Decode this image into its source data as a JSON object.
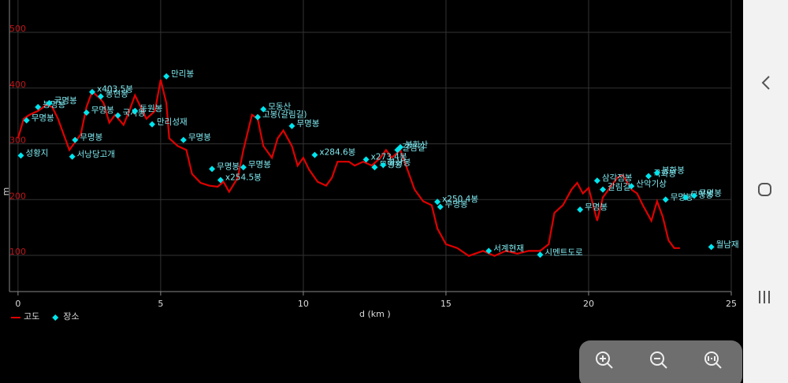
{
  "chart_data": {
    "type": "line",
    "x_label": "d (km )",
    "y_label": "m",
    "xlim": [
      -0.3,
      25
    ],
    "ylim": [
      35,
      558
    ],
    "xticks": [
      0,
      5,
      10,
      15,
      20,
      25
    ],
    "yticks": [
      100,
      200,
      300,
      400,
      500
    ],
    "grid": true,
    "series": [
      {
        "name": "고도",
        "color": "#e00000",
        "type": "line",
        "x": [
          0,
          0.2,
          0.4,
          0.7,
          1.0,
          1.2,
          1.4,
          1.6,
          1.8,
          2.0,
          2.2,
          2.4,
          2.6,
          2.9,
          3.0,
          3.2,
          3.4,
          3.7,
          3.9,
          4.1,
          4.3,
          4.5,
          4.8,
          5.0,
          5.2,
          5.3,
          5.6,
          5.9,
          6.1,
          6.4,
          6.7,
          7.0,
          7.2,
          7.4,
          7.7,
          7.9,
          8.2,
          8.4,
          8.6,
          8.9,
          9.1,
          9.3,
          9.6,
          9.8,
          10.0,
          10.2,
          10.5,
          10.8,
          11.0,
          11.2,
          11.6,
          11.8,
          12.1,
          12.4,
          12.7,
          12.9,
          13.1,
          13.4,
          13.6,
          13.9,
          14.2,
          14.5,
          14.7,
          15.0,
          15.4,
          15.8,
          16.3,
          16.7,
          17.1,
          17.5,
          17.9,
          18.3,
          18.6,
          18.8,
          19.1,
          19.4,
          19.6,
          19.8,
          20.0,
          20.3,
          20.5,
          20.7,
          21.0,
          21.2,
          21.5,
          21.7,
          21.9,
          22.2,
          22.4,
          22.6,
          22.8,
          23.0,
          23.2
        ],
        "values": [
          310,
          345,
          352,
          359,
          370,
          366,
          345,
          317,
          289,
          303,
          317,
          366,
          394,
          380,
          373,
          338,
          352,
          334,
          359,
          387,
          366,
          345,
          359,
          415,
          373,
          310,
          296,
          289,
          246,
          230,
          225,
          223,
          232,
          214,
          239,
          289,
          352,
          345,
          296,
          275,
          310,
          324,
          296,
          261,
          275,
          254,
          232,
          225,
          239,
          268,
          268,
          261,
          268,
          261,
          275,
          289,
          275,
          289,
          261,
          218,
          197,
          190,
          148,
          120,
          113,
          99,
          108,
          99,
          108,
          103,
          108,
          108,
          120,
          176,
          190,
          218,
          230,
          211,
          221,
          162,
          204,
          218,
          239,
          244,
          218,
          211,
          190,
          162,
          197,
          169,
          127,
          113,
          113
        ]
      },
      {
        "name": "장소",
        "color": "#00e5ee",
        "type": "scatter",
        "x": [
          0.1,
          0.3,
          0.7,
          1.1,
          1.9,
          2.0,
          2.4,
          2.6,
          2.9,
          3.5,
          4.1,
          4.7,
          5.2,
          5.8,
          6.8,
          7.1,
          7.9,
          8.4,
          8.6,
          9.6,
          10.4,
          12.2,
          12.5,
          12.8,
          13.3,
          13.4,
          14.7,
          14.8,
          16.5,
          18.3,
          19.7,
          20.3,
          20.5,
          21.5,
          22.1,
          22.4,
          22.7,
          23.4,
          23.7,
          24.3
        ],
        "values": [
          279,
          342,
          366,
          373,
          277,
          307,
          356,
          393,
          385,
          351,
          359,
          335,
          421,
          307,
          255,
          235,
          258,
          348,
          362,
          332,
          280,
          272,
          258,
          262,
          289,
          294,
          196,
          187,
          108,
          101,
          182,
          234,
          218,
          224,
          242,
          248,
          200,
          204,
          207,
          115
        ],
        "labels": [
          "성황지",
          "무명봉",
          "봉명봉",
          "국명봉",
          "서낭당고개",
          "무명봉",
          "무명봉",
          "x403.5봉",
          "봉현봉",
          "국사봉",
          "동원봉",
          "만리성재",
          "만리봉",
          "무명봉",
          "무명봉",
          "x254.5봉",
          "무명봉",
          "고봉(갈림길)",
          "모동산",
          "무명봉",
          "x284.6봉",
          "x273.4봉",
          "무명봉",
          "화산봉",
          "갈림길",
          "봉화산",
          "x250.4봉",
          "무명봉",
          "서계현재",
          "시멘트도로",
          "무명봉",
          "삼각점봉",
          "갈림길",
          "산악기상",
          "국화봉",
          "봉화봉",
          "무명봉",
          "무명봉",
          "무명봉",
          "월남재"
        ]
      }
    ]
  }
}
